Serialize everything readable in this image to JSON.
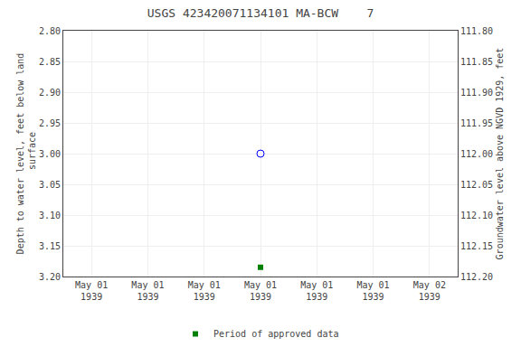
{
  "chart_data": {
    "type": "scatter",
    "title": "USGS 423420071134101 MA-BCW    7",
    "y_label": "Depth to water level, feet below land\n surface",
    "y2_label": "Groundwater level above NGVD 1929, feet",
    "categories": [
      "May 01\n1939",
      "May 01\n1939",
      "May 01\n1939",
      "May 01\n1939",
      "May 01\n1939",
      "May 01\n1939",
      "May 02\n1939"
    ],
    "series": [
      {
        "color": "blue",
        "marker": "circle-open",
        "values": [
          null,
          null,
          null,
          3.0,
          null,
          null,
          null
        ]
      },
      {
        "name": "Period of approved data",
        "color": "#008000",
        "marker": "square",
        "values": [
          null,
          null,
          null,
          3.185,
          null,
          null,
          null
        ]
      }
    ],
    "ylim": [
      3.2,
      2.8
    ],
    "yticks": [
      {
        "value": 2.8,
        "label": "2.80"
      },
      2.85,
      {
        "value": 2.9,
        "label": "2.90"
      },
      2.95,
      {
        "value": 3.0,
        "label": "3.00"
      },
      3.05,
      {
        "value": 3.1,
        "label": "3.10"
      },
      3.15,
      {
        "value": 3.2,
        "label": "3.20"
      }
    ],
    "y2lim": [
      112.2,
      111.8
    ],
    "y2ticks": [
      {
        "value": 112.2,
        "label": "112.20"
      },
      112.15,
      {
        "value": 112.1,
        "label": "112.10"
      },
      112.05,
      {
        "value": 112.0,
        "label": "112.00"
      },
      111.95,
      {
        "value": 111.9,
        "label": "111.90"
      },
      111.85,
      {
        "value": 111.8,
        "label": "111.80"
      }
    ],
    "grid": true,
    "legend": "bottom"
  }
}
